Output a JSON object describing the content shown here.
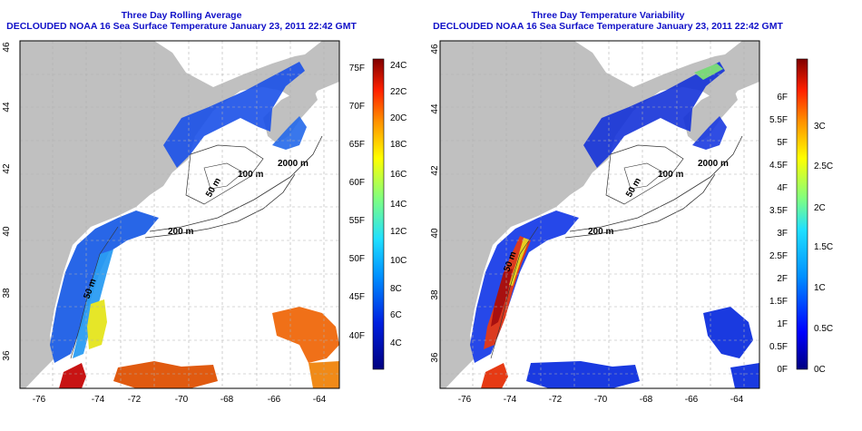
{
  "left_panel": {
    "title_line1": "Three Day Rolling Average",
    "title_line2": "DECLOUDED NOAA 16 Sea Surface Temperature January 23, 2011 22:42 GMT",
    "colorbar_f_labels": [
      "75F",
      "70F",
      "65F",
      "60F",
      "55F",
      "50F",
      "45F",
      "40F"
    ],
    "colorbar_c_labels": [
      "24C",
      "22C",
      "20C",
      "18C",
      "16C",
      "14C",
      "12C",
      "10C",
      "8C",
      "6C",
      "4C"
    ],
    "contours": [
      "2000 m",
      "100 m",
      "50 m",
      "200 m",
      "50 m"
    ]
  },
  "right_panel": {
    "title_line1": "Three Day Temperature Variability",
    "title_line2": "DECLOUDED NOAA 16 Sea Surface Temperature January 23, 2011 22:42 GMT",
    "colorbar_f_labels": [
      "6F",
      "5.5F",
      "5F",
      "4.5F",
      "4F",
      "3.5F",
      "3F",
      "2.5F",
      "2F",
      "1.5F",
      "1F",
      "0.5F",
      "0F"
    ],
    "colorbar_c_labels": [
      "3C",
      "2.5C",
      "2C",
      "1.5C",
      "1C",
      "0.5C",
      "0C"
    ],
    "contours": [
      "2000 m",
      "100 m",
      "50 m",
      "200 m",
      "50 m"
    ]
  },
  "axes": {
    "lon_labels": [
      "-76",
      "-74",
      "-72",
      "-70",
      "-68",
      "-66",
      "-64"
    ],
    "lat_labels": [
      "46",
      "44",
      "42",
      "40",
      "38",
      "36"
    ]
  },
  "colors": {
    "title": "#1010c8",
    "land": "#c0c0c0",
    "ocean": "#ffffff",
    "grid": "#b0b0b0"
  }
}
